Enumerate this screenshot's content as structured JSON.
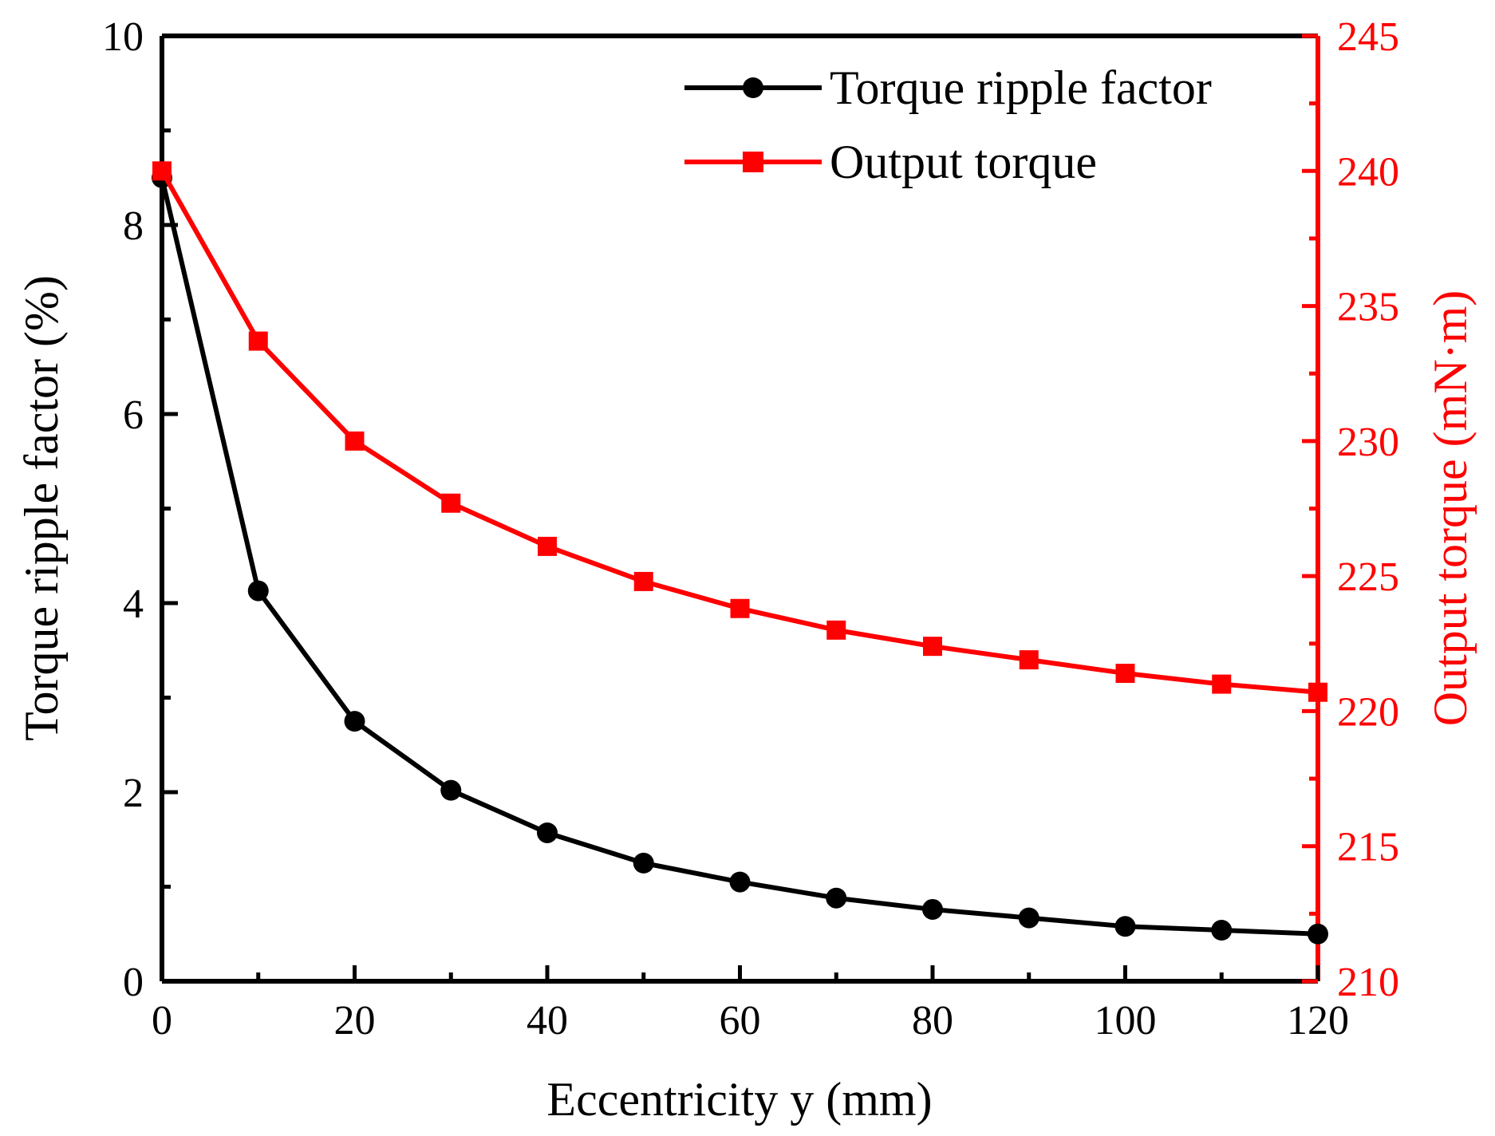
{
  "chart_data": {
    "type": "line",
    "title": "",
    "xlabel": "Eccentricity y (mm)",
    "ylabel": "Torque ripple factor (%)",
    "y2label": "Output torque (mN·m)",
    "xlim": [
      0,
      120
    ],
    "ylim": [
      0,
      10
    ],
    "y2lim": [
      210,
      245
    ],
    "xticks": [
      "0",
      "20",
      "40",
      "60",
      "80",
      "100",
      "120"
    ],
    "yticks": [
      "0",
      "2",
      "4",
      "6",
      "8",
      "10"
    ],
    "y2ticks": [
      "210",
      "215",
      "220",
      "225",
      "230",
      "235",
      "240",
      "245"
    ],
    "grid": false,
    "legend_position": "top-right",
    "x": [
      0,
      10,
      20,
      30,
      40,
      50,
      60,
      70,
      80,
      90,
      100,
      110,
      120
    ],
    "series": [
      {
        "name": "Torque ripple factor",
        "axis": "left",
        "marker": "circle",
        "color": "#000000",
        "values": [
          8.5,
          4.13,
          2.75,
          2.02,
          1.57,
          1.25,
          1.05,
          0.88,
          0.76,
          0.67,
          0.58,
          0.54,
          0.5
        ]
      },
      {
        "name": "Output torque",
        "axis": "right",
        "marker": "square",
        "color": "#ff0000",
        "values": [
          240.0,
          233.7,
          230.0,
          227.7,
          226.1,
          224.8,
          223.8,
          223.0,
          222.4,
          221.9,
          221.4,
          221.0,
          220.7
        ]
      }
    ]
  }
}
